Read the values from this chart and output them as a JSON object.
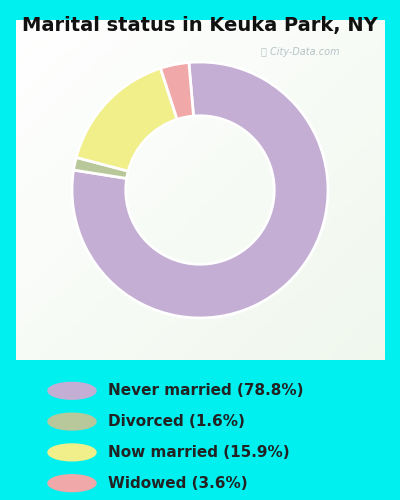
{
  "title": "Marital status in Keuka Park, NY",
  "slices": [
    78.8,
    1.6,
    15.9,
    3.6
  ],
  "colors": [
    "#c4aed4",
    "#b8c89a",
    "#f0ef8a",
    "#f0a8a8"
  ],
  "labels": [
    "Never married (78.8%)",
    "Divorced (1.6%)",
    "Now married (15.9%)",
    "Widowed (3.6%)"
  ],
  "bg_cyan": "#00f0f0",
  "bg_chart_top_left": "#f0f8f4",
  "bg_chart_bottom_right": "#d0eae0",
  "title_fontsize": 14,
  "legend_fontsize": 11,
  "watermark": "City-Data.com",
  "startangle": 90,
  "donut_width": 0.42
}
